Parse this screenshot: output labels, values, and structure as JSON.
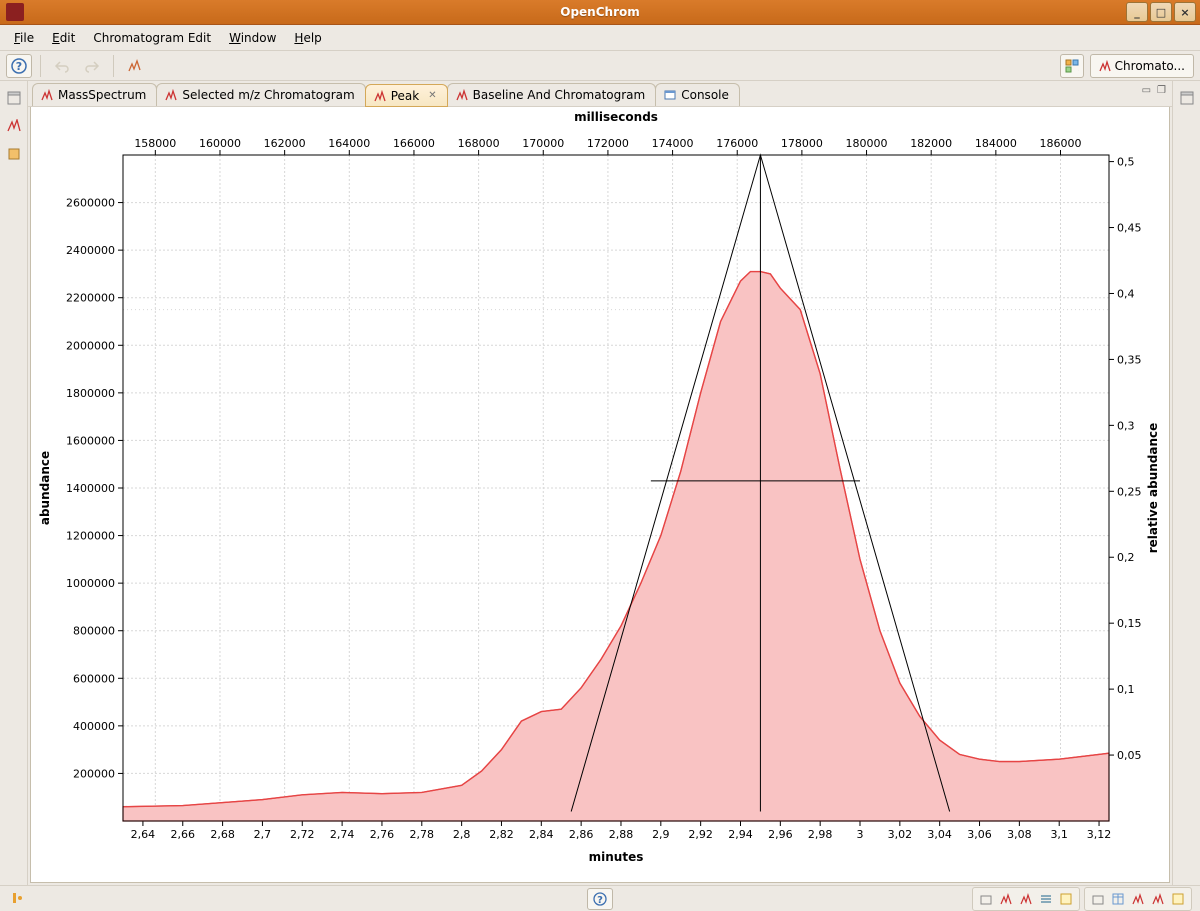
{
  "window": {
    "title": "OpenChrom",
    "minimize": "_",
    "maximize": "□",
    "close": "×"
  },
  "menu": {
    "file": "File",
    "edit": "Edit",
    "chrom": "Chromatogram Edit",
    "window": "Window",
    "help": "Help"
  },
  "perspective": {
    "label": "Chromato..."
  },
  "tabs": [
    {
      "label": "MassSpectrum",
      "icon": "red-peak",
      "active": false
    },
    {
      "label": "Selected m/z Chromatogram",
      "icon": "red-peak",
      "active": false
    },
    {
      "label": "Peak",
      "icon": "red-peak",
      "active": true
    },
    {
      "label": "Baseline And Chromatogram",
      "icon": "red-peak",
      "active": false
    },
    {
      "label": "Console",
      "icon": "console",
      "active": false
    }
  ],
  "chart": {
    "type": "area",
    "top_axis_label": "milliseconds",
    "top_ticks": [
      158000,
      160000,
      162000,
      164000,
      166000,
      168000,
      170000,
      172000,
      174000,
      176000,
      178000,
      180000,
      182000,
      184000,
      186000
    ],
    "bottom_axis_label": "minutes",
    "bottom_ticks": [
      "2,64",
      "2,66",
      "2,68",
      "2,7",
      "2,72",
      "2,74",
      "2,76",
      "2,78",
      "2,8",
      "2,82",
      "2,84",
      "2,86",
      "2,88",
      "2,9",
      "2,92",
      "2,94",
      "2,96",
      "2,98",
      "3",
      "3,02",
      "3,04",
      "3,06",
      "3,08",
      "3,1",
      "3,12"
    ],
    "left_axis_label": "abundance",
    "left_ticks": [
      200000,
      400000,
      600000,
      800000,
      1000000,
      1200000,
      1400000,
      1600000,
      1800000,
      2000000,
      2200000,
      2400000,
      2600000
    ],
    "right_axis_label": "relative abundance",
    "right_ticks": [
      "0,05",
      "0,1",
      "0,15",
      "0,2",
      "0,25",
      "0,3",
      "0,35",
      "0,4",
      "0,45",
      "0,5"
    ],
    "x_min_min": 2.63,
    "x_max_min": 3.125,
    "x_min_ms": 157000,
    "x_max_ms": 187500,
    "y_min": 0,
    "y_max": 2800000,
    "r_min": 0,
    "r_max": 0.505,
    "peak_polygon_minutes_abundance": [
      [
        2.63,
        60000
      ],
      [
        2.66,
        65000
      ],
      [
        2.7,
        90000
      ],
      [
        2.72,
        110000
      ],
      [
        2.74,
        120000
      ],
      [
        2.76,
        115000
      ],
      [
        2.78,
        120000
      ],
      [
        2.8,
        150000
      ],
      [
        2.81,
        210000
      ],
      [
        2.82,
        300000
      ],
      [
        2.83,
        420000
      ],
      [
        2.84,
        460000
      ],
      [
        2.85,
        470000
      ],
      [
        2.86,
        560000
      ],
      [
        2.87,
        680000
      ],
      [
        2.88,
        820000
      ],
      [
        2.89,
        1000000
      ],
      [
        2.9,
        1200000
      ],
      [
        2.91,
        1470000
      ],
      [
        2.92,
        1800000
      ],
      [
        2.93,
        2100000
      ],
      [
        2.94,
        2270000
      ],
      [
        2.945,
        2310000
      ],
      [
        2.95,
        2310000
      ],
      [
        2.955,
        2300000
      ],
      [
        2.96,
        2240000
      ],
      [
        2.97,
        2150000
      ],
      [
        2.98,
        1880000
      ],
      [
        2.99,
        1480000
      ],
      [
        3.0,
        1100000
      ],
      [
        3.01,
        800000
      ],
      [
        3.02,
        580000
      ],
      [
        3.03,
        440000
      ],
      [
        3.04,
        340000
      ],
      [
        3.05,
        280000
      ],
      [
        3.06,
        260000
      ],
      [
        3.07,
        250000
      ],
      [
        3.08,
        250000
      ],
      [
        3.09,
        255000
      ],
      [
        3.1,
        260000
      ],
      [
        3.11,
        270000
      ],
      [
        3.12,
        280000
      ],
      [
        3.125,
        285000
      ]
    ],
    "triangle": {
      "apex_min": 2.95,
      "apex_abun": 2800000,
      "left_min": 2.855,
      "right_min": 3.045,
      "base_abun": 40000
    },
    "hwhm_line": {
      "x1_min": 2.895,
      "x2_min": 3.0,
      "abun": 1430000
    },
    "vline_min": 2.95,
    "dotted_h_at": 2150000,
    "background_color": "#ffffff",
    "fill_color": "#f9c3c3",
    "stroke_color": "#e64545",
    "grid_color": "#d7d7d7"
  }
}
